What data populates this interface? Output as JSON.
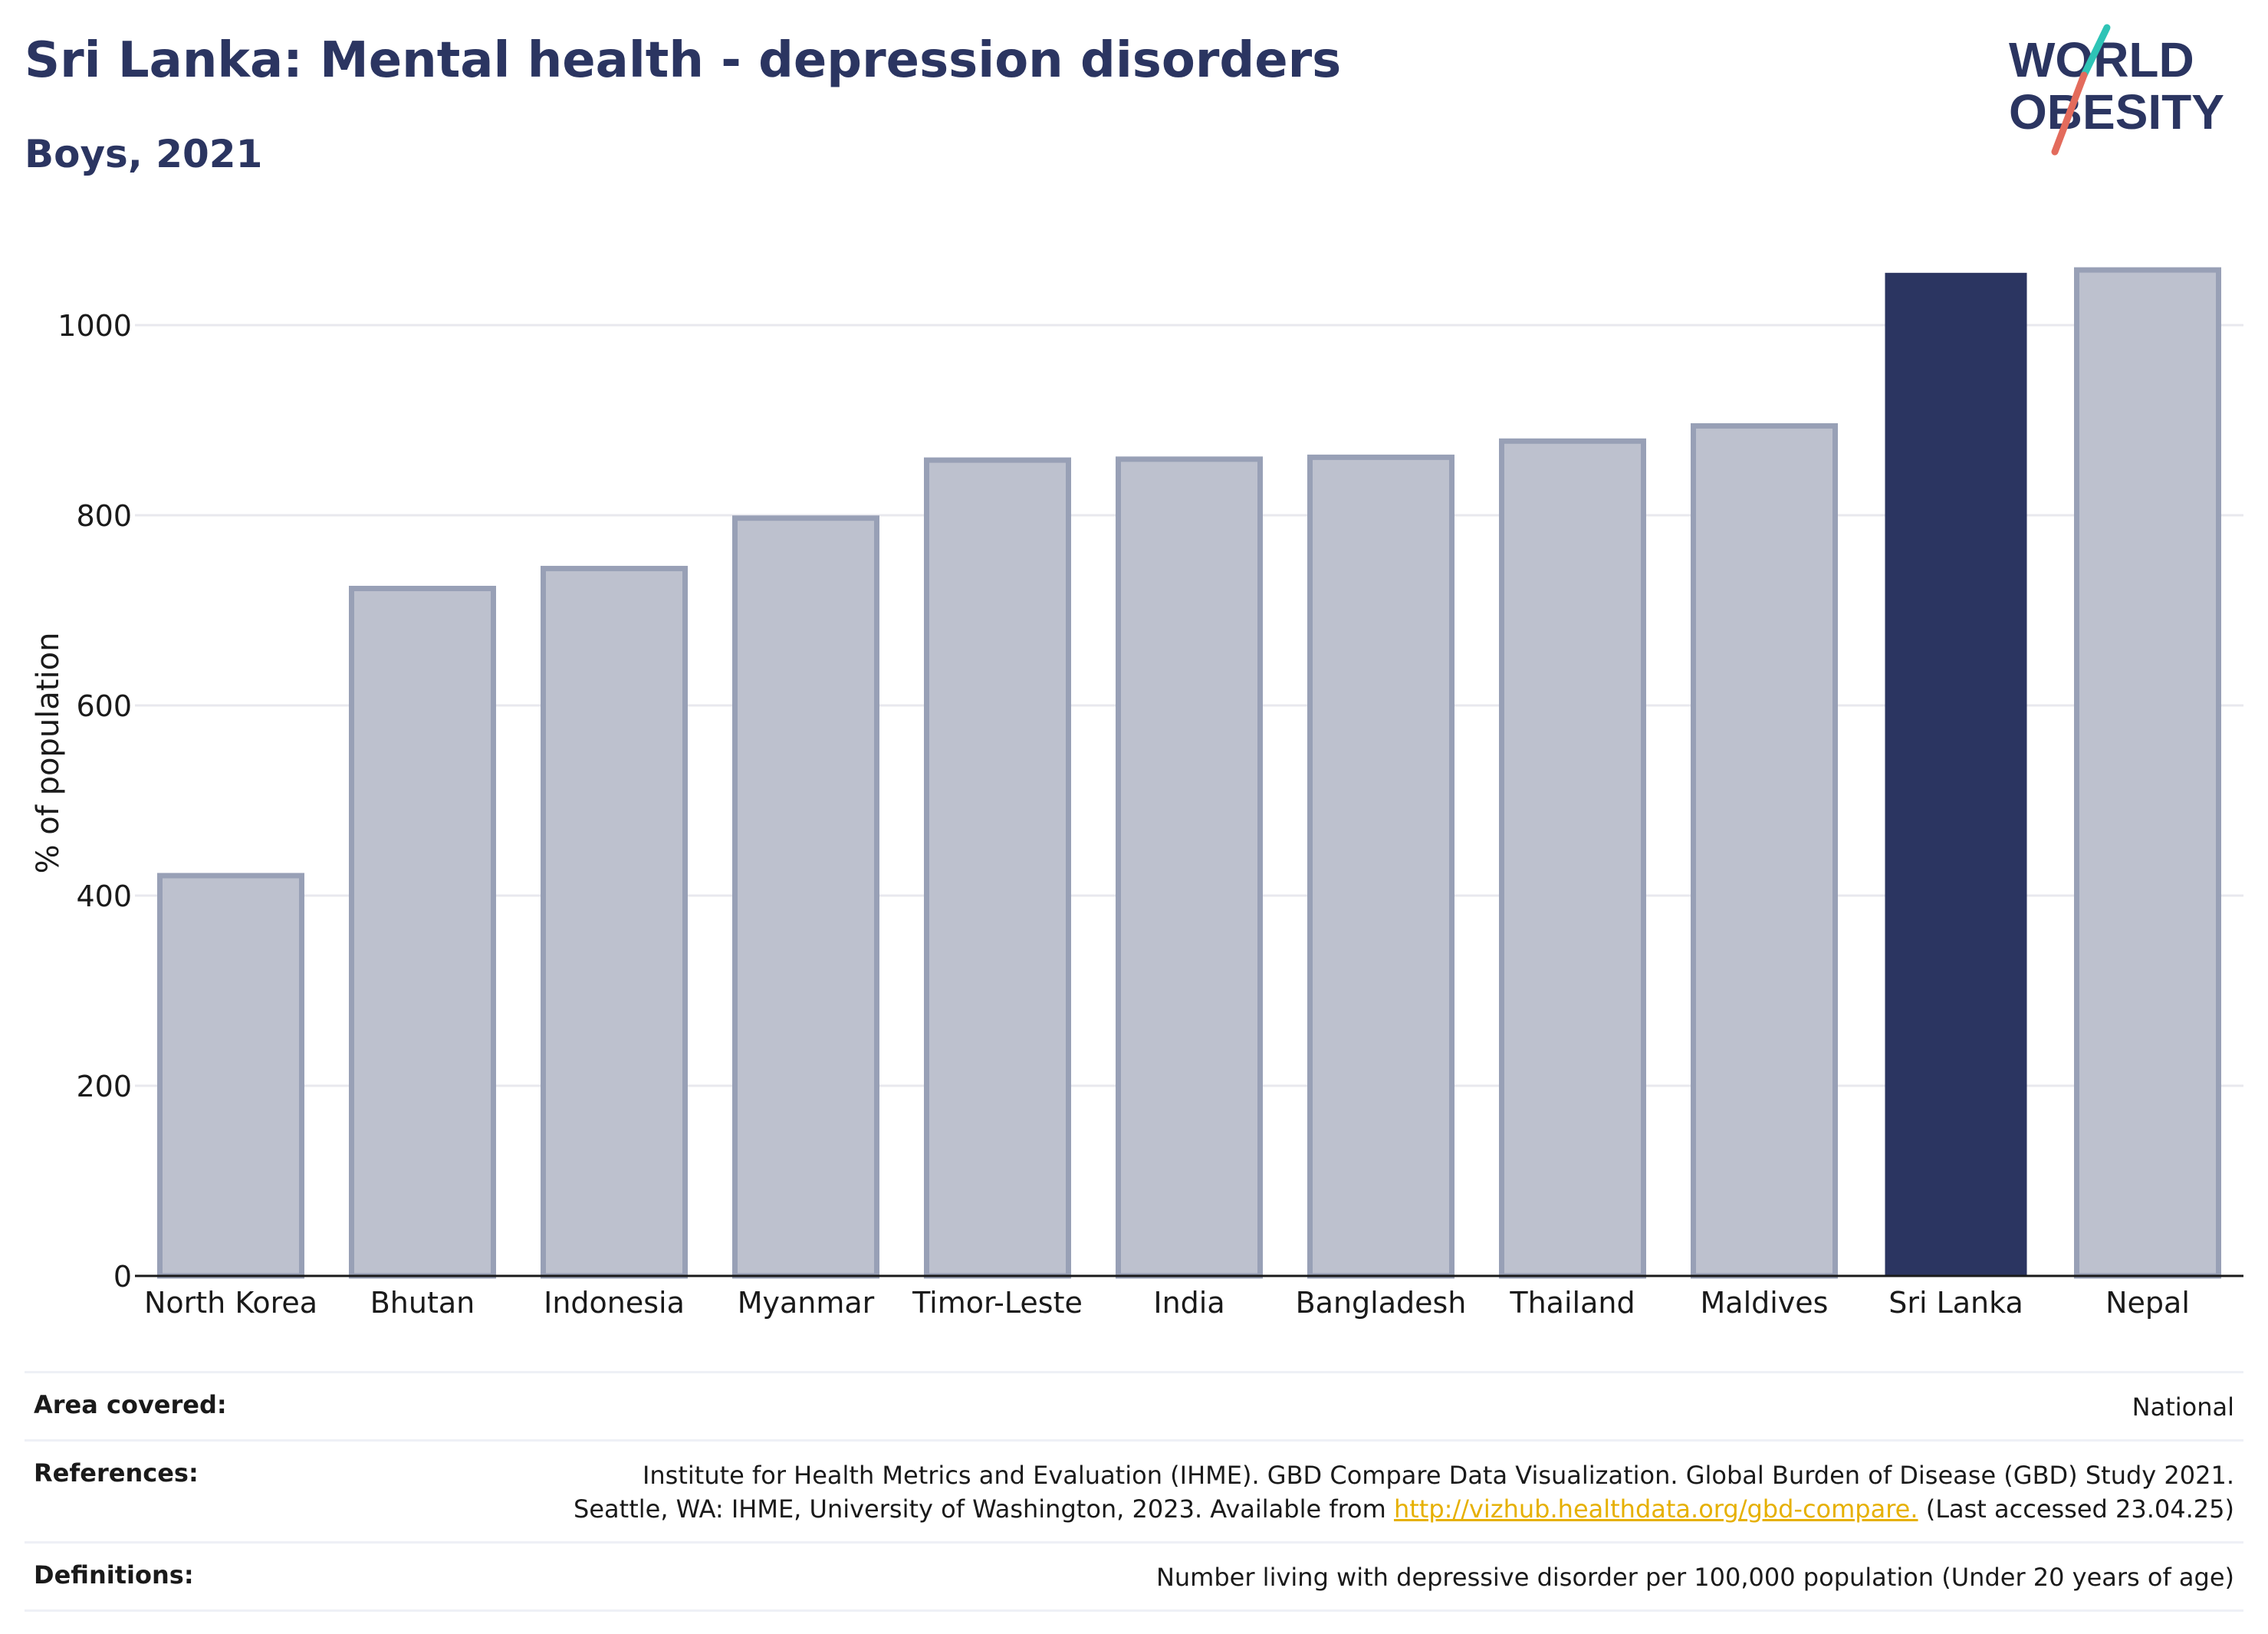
{
  "title": "Sri Lanka: Mental health - depression disorders",
  "subtitle": "Boys, 2021",
  "logo": {
    "line1": "WORLD",
    "line2": "OBESITY"
  },
  "colors": {
    "highlight": "#2b3561",
    "bar": "#bdc1ce",
    "bar_stroke": "#98a0b6",
    "grid": "#e8e8ee",
    "accent_teal": "#2ec4b6",
    "accent_red": "#e36b5c"
  },
  "chart_data": {
    "type": "bar",
    "categories": [
      "North Korea",
      "Bhutan",
      "Indonesia",
      "Myanmar",
      "Timor-Leste",
      "India",
      "Bangladesh",
      "Thailand",
      "Maldives",
      "Sri Lanka",
      "Nepal"
    ],
    "values": [
      421,
      723,
      744,
      797,
      858,
      859,
      861,
      878,
      894,
      1055,
      1058
    ],
    "highlight": "Sri Lanka",
    "ylabel": "% of population",
    "xlabel": "",
    "ylim": [
      0,
      1100
    ],
    "yticks": [
      0,
      200,
      400,
      600,
      800,
      1000
    ],
    "grid": true
  },
  "meta": {
    "area_label": "Area covered:",
    "area_value": "National",
    "references_label": "References:",
    "references_line1": "Institute for Health Metrics and Evaluation (IHME). GBD Compare Data Visualization. Global Burden of Disease (GBD) Study 2021.",
    "references_line2_pre": "Seattle, WA: IHME, University of Washington, 2023. Available from ",
    "references_link": "http://vizhub.healthdata.org/gbd-compare.",
    "references_line2_post": " (Last accessed 23.04.25)",
    "definitions_label": "Definitions:",
    "definitions_value": "Number living with depressive disorder per 100,000 population (Under 20 years of age)"
  }
}
